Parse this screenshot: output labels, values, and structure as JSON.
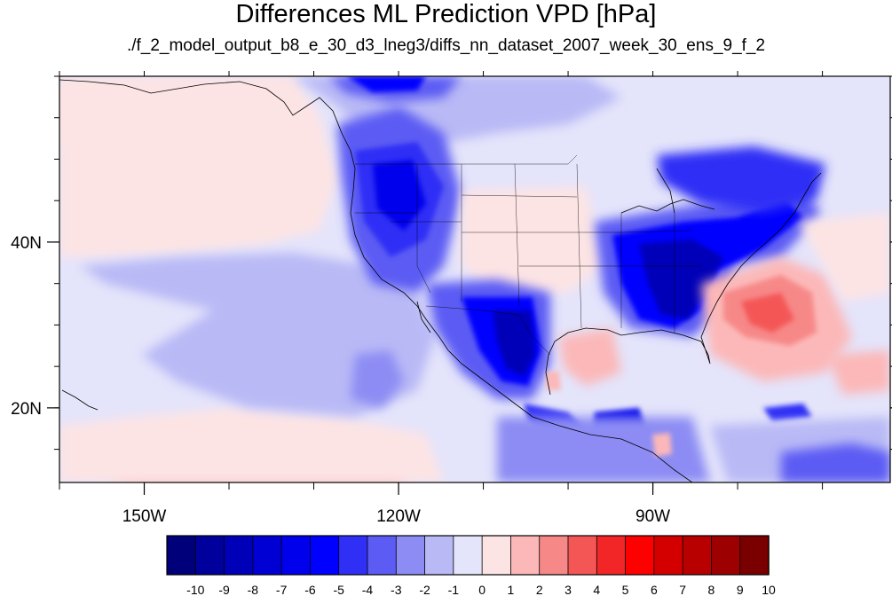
{
  "title": "Differences ML Prediction VPD [hPa]",
  "subtitle": "./f_2_model_output_b8_e_30_d3_lneg3/diffs_nn_dataset_2007_week_30_ens_9_f_2",
  "chart_data": {
    "type": "heatmap",
    "projection": "cylindrical-equidistant",
    "lon_range": [
      -160,
      -62
    ],
    "lat_range": [
      11,
      60
    ],
    "x_tick_labels": [
      {
        "lon": -150,
        "label": "150W"
      },
      {
        "lon": -120,
        "label": "120W"
      },
      {
        "lon": -90,
        "label": "90W"
      }
    ],
    "y_tick_labels": [
      {
        "lat": 40,
        "label": "40N"
      },
      {
        "lat": 20,
        "label": "20N"
      }
    ],
    "colorbar": {
      "levels": [
        "-10",
        "-9",
        "-8",
        "-7",
        "-6",
        "-5",
        "-4",
        "-3",
        "-2",
        "-1",
        "0",
        "1",
        "2",
        "3",
        "4",
        "5",
        "6",
        "7",
        "8",
        "9",
        "10"
      ],
      "colors": [
        "#00007a",
        "#00009c",
        "#0000b8",
        "#0000d4",
        "#0000ec",
        "#0000ff",
        "#2f2ff6",
        "#5c5cf4",
        "#8c8cf4",
        "#b9b9f6",
        "#e4e4fb",
        "#fde4e4",
        "#fcb8b8",
        "#f78888",
        "#f45656",
        "#f22626",
        "#ff0000",
        "#d40000",
        "#b80000",
        "#9c0000",
        "#7a0000"
      ],
      "placement": "bottom"
    },
    "regions": [
      {
        "name": "background",
        "level": -1
      },
      {
        "name": "north-pacific-pink",
        "level": 1
      },
      {
        "name": "east-pacific-low",
        "level": -2
      },
      {
        "name": "rockies-strong-low",
        "level": -5
      },
      {
        "name": "great-plains-high",
        "level": 3
      },
      {
        "name": "southeast-strong-low",
        "level": -6
      },
      {
        "name": "mexico-strong-low",
        "level": -7
      },
      {
        "name": "atlantic-high",
        "level": 4
      }
    ]
  }
}
